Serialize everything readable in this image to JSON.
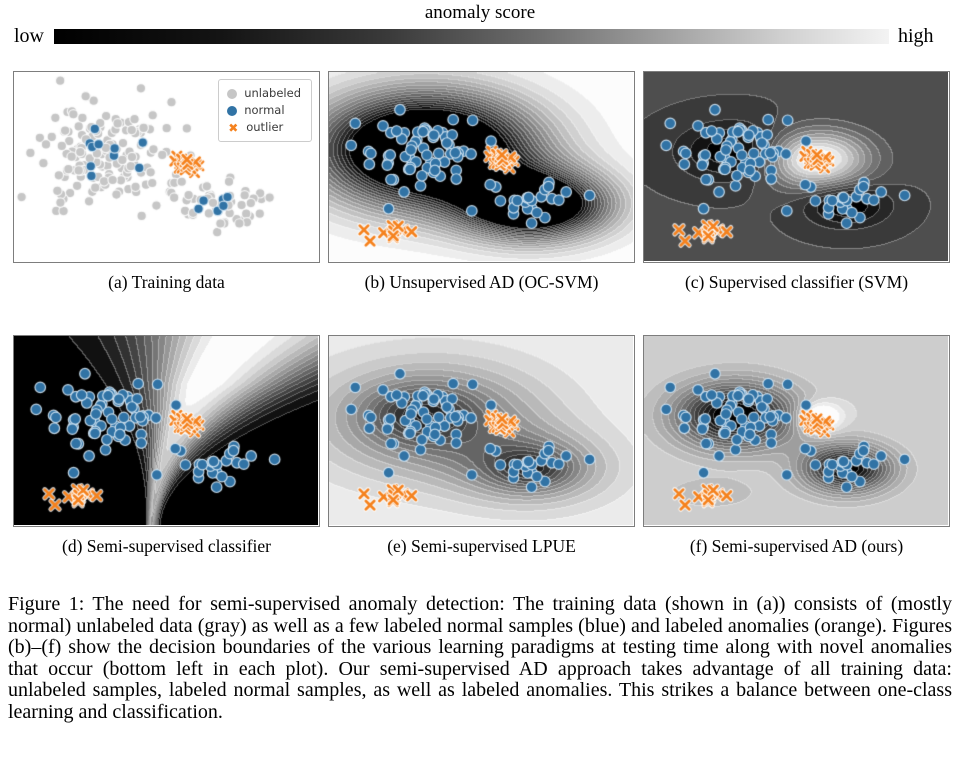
{
  "colorbar": {
    "title": "anomaly score",
    "low_label": "low",
    "high_label": "high",
    "start_color": "#000000",
    "end_color": "#f3f3f3"
  },
  "colors": {
    "unlabeled": "#c6c6c6",
    "normal": "#3173a5",
    "normal_edge": "rgba(214,232,245,0.9)",
    "outlier": "#f5821e",
    "outlier_halo": "rgba(255,255,255,0.8)",
    "panel_border": "#7d7d7d"
  },
  "figure_caption": "Figure 1: The need for semi-supervised anomaly detection: The training data (shown in (a)) consists of (mostly normal) unlabeled data (gray) as well as a few labeled normal samples (blue) and labeled anomalies (orange). Figures (b)–(f) show the decision boundaries of the various learning paradigms at testing time along with novel anomalies that occur (bottom left in each plot). Our semi-supervised AD approach takes advantage of all training data: unlabeled samples, labeled normal samples, as well as labeled anomalies. This strikes a balance between one-class learning and classification.",
  "chart_data": {
    "type": "scatter",
    "description": "Six 2D toy panels: training points (unlabeled gray, labeled normal blue, labeled outlier orange) over grayscale anomaly-score contour fields; novel anomalies appear bottom-left in panels b-f.",
    "legend": {
      "position": "top-right of panel (a)",
      "items": [
        {
          "label": "unlabeled",
          "marker": "circle",
          "color": "#c6c6c6"
        },
        {
          "label": "normal",
          "marker": "circle",
          "color": "#3173a5"
        },
        {
          "label": "outlier",
          "marker": "x",
          "color": "#f5821e"
        }
      ]
    },
    "test_groups": [
      {
        "class": "normal",
        "marker": "circle",
        "n": 70,
        "cx": 0.3,
        "cy": 0.42,
        "sx": 0.1,
        "sy": 0.115,
        "seed": 21,
        "r": 5.3
      },
      {
        "class": "normal",
        "marker": "circle",
        "n": 26,
        "cx": 0.663,
        "cy": 0.7,
        "sx": 0.062,
        "sy": 0.05,
        "seed": 22,
        "r": 5.3
      },
      {
        "class": "outlier",
        "marker": "x",
        "n": 18,
        "cx": 0.565,
        "cy": 0.465,
        "sx": 0.021,
        "sy": 0.035,
        "seed": 15,
        "r": 4.2
      },
      {
        "class": "novel-outlier",
        "marker": "x",
        "n": 13,
        "cx": 0.205,
        "cy": 0.85,
        "sx": 0.018,
        "sy": 0.024,
        "seed": 23,
        "r": 4.2
      },
      {
        "class": "novel-outlier",
        "marker": "x",
        "points": [
          [
            0.115,
            0.835
          ],
          [
            0.135,
            0.895
          ],
          [
            0.272,
            0.845
          ]
        ],
        "r": 4.2
      }
    ],
    "panels": [
      {
        "id": "a",
        "caption": "(a) Training data",
        "field": null,
        "groups": [
          {
            "class": "unlabeled",
            "marker": "circle",
            "n": 150,
            "cx": 0.295,
            "cy": 0.43,
            "sx": 0.102,
            "sy": 0.135,
            "seed": 11,
            "r": 4.7
          },
          {
            "class": "unlabeled",
            "marker": "circle",
            "n": 48,
            "cx": 0.675,
            "cy": 0.705,
            "sx": 0.072,
            "sy": 0.06,
            "seed": 12,
            "r": 4.7
          },
          {
            "class": "normal",
            "marker": "circle",
            "n": 10,
            "cx": 0.29,
            "cy": 0.44,
            "sx": 0.052,
            "sy": 0.05,
            "seed": 13,
            "r": 4.7
          },
          {
            "class": "normal",
            "marker": "circle",
            "n": 7,
            "cx": 0.662,
            "cy": 0.7,
            "sx": 0.034,
            "sy": 0.027,
            "seed": 14,
            "r": 4.7
          },
          {
            "class": "outlier",
            "marker": "x",
            "n": 18,
            "cx": 0.565,
            "cy": 0.49,
            "sx": 0.021,
            "sy": 0.035,
            "seed": 15,
            "r": 4.2
          }
        ]
      },
      {
        "id": "b",
        "caption": "(b) Unsupervised AD (OC-SVM)",
        "field": {
          "type": "bumps",
          "bg": 1.0,
          "levels": 18,
          "bumps": [
            {
              "cx": 0.32,
              "cy": 0.41,
              "sx": 0.235,
              "sy": 0.2,
              "amp": -1.7
            },
            {
              "cx": 0.67,
              "cy": 0.7,
              "sx": 0.165,
              "sy": 0.125,
              "amp": -1.45
            }
          ]
        },
        "groups": "test"
      },
      {
        "id": "c",
        "caption": "(c) Supervised classifier (SVM)",
        "field": {
          "type": "bumps",
          "bg": 0.29,
          "levels": 14,
          "bumps": [
            {
              "cx": 0.3,
              "cy": 0.42,
              "sx": 0.125,
              "sy": 0.105,
              "amp": -0.3
            },
            {
              "cx": 0.665,
              "cy": 0.7,
              "sx": 0.095,
              "sy": 0.08,
              "amp": -0.3
            },
            {
              "cx": 0.565,
              "cy": 0.46,
              "sx": 0.115,
              "sy": 0.1,
              "amp": 0.75
            }
          ]
        },
        "groups": "test"
      },
      {
        "id": "d",
        "caption": "(d) Semi-supervised classifier",
        "field": {
          "type": "funnel",
          "bg": 0.03,
          "levels": 16,
          "a": 0.73,
          "b": -0.52,
          "c": 0.24,
          "w0": 0.34,
          "w1": 0.012,
          "left_ratio": 0.6,
          "fade_start": 0.25,
          "fade_k": 0.55
        },
        "groups": "test"
      },
      {
        "id": "e",
        "caption": "(e) Semi-supervised LPUE",
        "field": {
          "type": "bumps",
          "bg": 0.93,
          "levels": 16,
          "bumps": [
            {
              "cx": 0.34,
              "cy": 0.44,
              "sx": 0.25,
              "sy": 0.205,
              "amp": -0.52
            },
            {
              "cx": 0.665,
              "cy": 0.7,
              "sx": 0.17,
              "sy": 0.13,
              "amp": -0.45
            },
            {
              "cx": 0.3,
              "cy": 0.41,
              "sx": 0.115,
              "sy": 0.1,
              "amp": -0.3
            },
            {
              "cx": 0.665,
              "cy": 0.7,
              "sx": 0.085,
              "sy": 0.07,
              "amp": -0.25
            }
          ]
        },
        "groups": "test"
      },
      {
        "id": "f",
        "caption": "(f) Semi-supervised AD (ours)",
        "field": {
          "type": "bumps",
          "bg": 0.82,
          "levels": 17,
          "bumps": [
            {
              "cx": 0.3,
              "cy": 0.42,
              "sx": 0.135,
              "sy": 0.12,
              "amp": -0.88
            },
            {
              "cx": 0.665,
              "cy": 0.7,
              "sx": 0.1,
              "sy": 0.088,
              "amp": -0.82
            },
            {
              "cx": 0.575,
              "cy": 0.43,
              "sx": 0.05,
              "sy": 0.055,
              "amp": 0.4
            },
            {
              "cx": 0.22,
              "cy": 0.83,
              "sx": 0.1,
              "sy": 0.055,
              "amp": -0.12
            }
          ]
        },
        "groups": "test"
      }
    ]
  }
}
